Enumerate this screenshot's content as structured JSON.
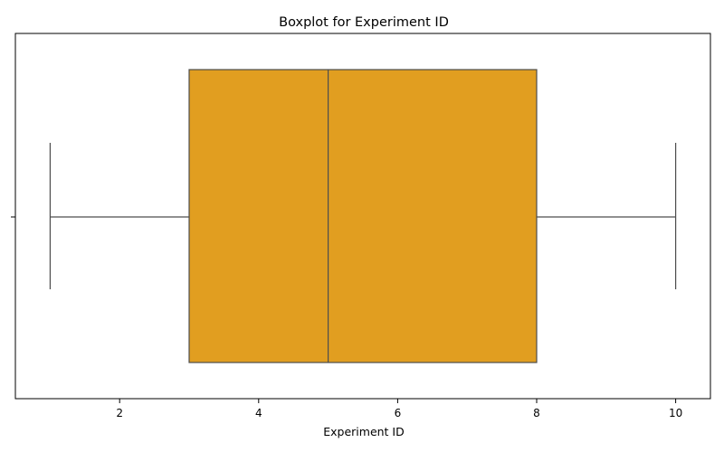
{
  "chart_data": {
    "type": "boxplot",
    "title": "Boxplot for Experiment ID",
    "xlabel": "Experiment ID",
    "ylabel": "",
    "orientation": "horizontal",
    "xlim": [
      0.5,
      10.5
    ],
    "xticks": [
      2,
      4,
      6,
      8,
      10
    ],
    "xtick_labels": [
      "2",
      "4",
      "6",
      "8",
      "10"
    ],
    "grid": false,
    "legend": "none",
    "box": {
      "whisker_low": 1,
      "q1": 3,
      "median": 5,
      "q3": 8,
      "whisker_high": 10
    },
    "colors": {
      "box_fill": "#E19E20",
      "line": "#4d4d4d"
    }
  }
}
